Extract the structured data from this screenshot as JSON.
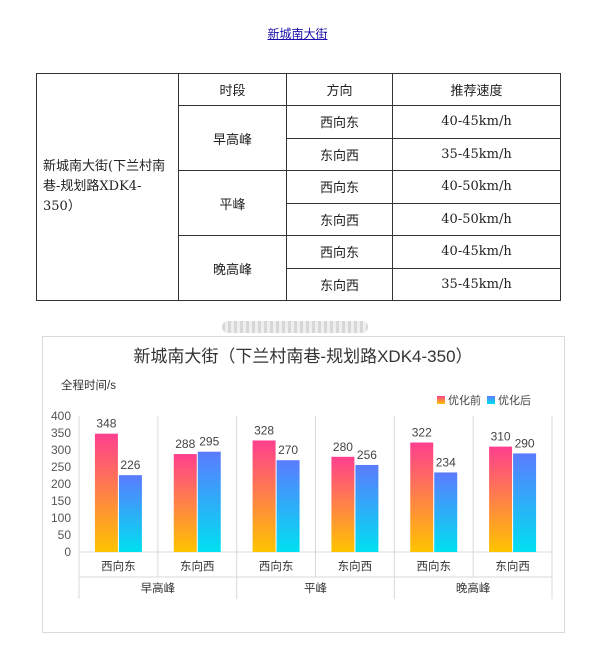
{
  "link": {
    "text": "新城南大街"
  },
  "speed_table": {
    "road": "新城南大街(下兰村南巷-规划路XDK4-350）",
    "headers": [
      "时段",
      "方向",
      "推荐速度"
    ],
    "groups": [
      {
        "period": "早高峰",
        "rows": [
          {
            "dir": "西向东",
            "speed": "40-45km/h"
          },
          {
            "dir": "东向西",
            "speed": "35-45km/h"
          }
        ]
      },
      {
        "period": "平峰",
        "rows": [
          {
            "dir": "西向东",
            "speed": "40-50km/h"
          },
          {
            "dir": "东向西",
            "speed": "40-50km/h"
          }
        ]
      },
      {
        "period": "晚高峰",
        "rows": [
          {
            "dir": "西向东",
            "speed": "40-45km/h"
          },
          {
            "dir": "东向西",
            "speed": "35-45km/h"
          }
        ]
      }
    ]
  },
  "chart_data": {
    "type": "bar",
    "title": "新城南大街（下兰村南巷-规划路XDK4-350）",
    "ylabel": "全程时间/s",
    "ylim": [
      0,
      400
    ],
    "yticks": [
      0,
      50,
      100,
      150,
      200,
      250,
      300,
      350,
      400
    ],
    "categories": [
      "西向东",
      "东向西",
      "西向东",
      "东向西",
      "西向东",
      "东向西"
    ],
    "groups": [
      {
        "label": "早高峰",
        "span": 2
      },
      {
        "label": "平峰",
        "span": 2
      },
      {
        "label": "晚高峰",
        "span": 2
      }
    ],
    "series": [
      {
        "name": "优化前",
        "values": [
          348,
          288,
          328,
          280,
          322,
          310
        ],
        "color_top": "#ff3f8f",
        "color_bottom": "#ffc400"
      },
      {
        "name": "优化后",
        "values": [
          226,
          295,
          270,
          256,
          234,
          290
        ],
        "color_top": "#5b7bff",
        "color_bottom": "#00e0f0"
      }
    ],
    "legend": "top-right",
    "grid": false
  }
}
